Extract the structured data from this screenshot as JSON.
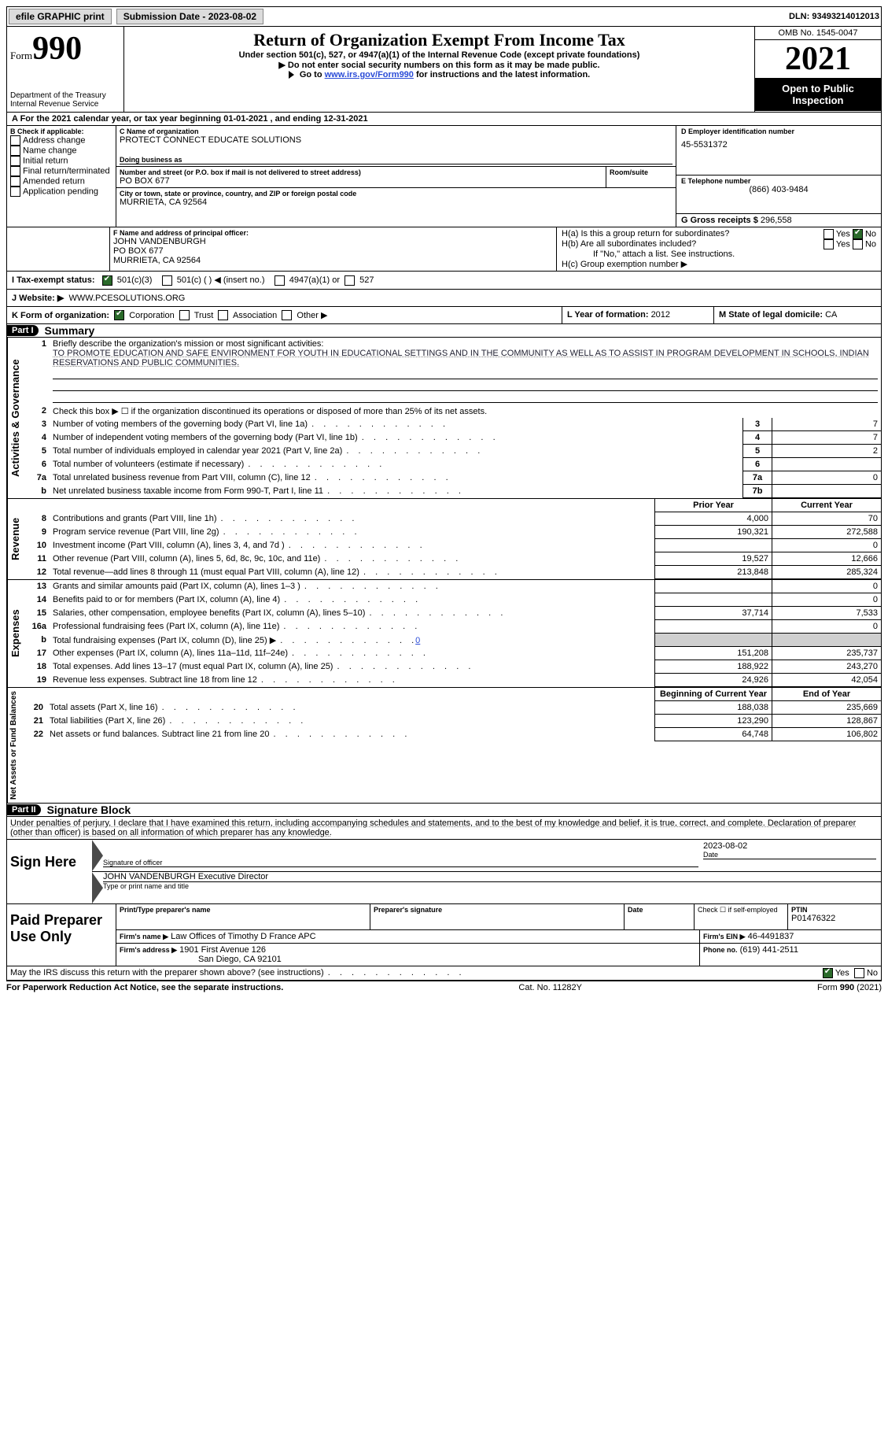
{
  "top": {
    "efile": "efile GRAPHIC print",
    "submission_label": "Submission Date - ",
    "submission_date": "2023-08-02",
    "dln_label": "DLN: ",
    "dln": "93493214012013"
  },
  "header": {
    "form_word": "Form",
    "form_num": "990",
    "dept": "Department of the Treasury",
    "irs": "Internal Revenue Service",
    "title": "Return of Organization Exempt From Income Tax",
    "subtitle": "Under section 501(c), 527, or 4947(a)(1) of the Internal Revenue Code (except private foundations)",
    "ssn_note": "Do not enter social security numbers on this form as it may be made public.",
    "goto": "Go to ",
    "goto_link": "www.irs.gov/Form990",
    "goto_rest": " for instructions and the latest information.",
    "omb": "OMB No. 1545-0047",
    "year": "2021",
    "open": "Open to Public Inspection"
  },
  "A": {
    "text_a": "A For the 2021 calendar year, or tax year beginning ",
    "begin": "01-01-2021",
    "mid": " , and ending ",
    "end": "12-31-2021"
  },
  "B": {
    "label": "B Check if applicable:",
    "addr": "Address change",
    "name": "Name change",
    "init": "Initial return",
    "final": "Final return/terminated",
    "amend": "Amended return",
    "app": "Application pending"
  },
  "C": {
    "name_label": "C Name of organization",
    "name": "PROTECT CONNECT EDUCATE SOLUTIONS",
    "dba_label": "Doing business as",
    "street_label": "Number and street (or P.O. box if mail is not delivered to street address)",
    "room_label": "Room/suite",
    "street": "PO BOX 677",
    "city_label": "City or town, state or province, country, and ZIP or foreign postal code",
    "city": "MURRIETA, CA  92564"
  },
  "D": {
    "label": "D Employer identification number",
    "val": "45-5531372"
  },
  "E": {
    "label": "E Telephone number",
    "val": "(866) 403-9484"
  },
  "G": {
    "label": "G Gross receipts $",
    "val": "296,558"
  },
  "F": {
    "label": "F Name and address of principal officer:",
    "name": "JOHN VANDENBURGH",
    "street": "PO BOX 677",
    "city": "MURRIETA, CA  92564"
  },
  "H": {
    "a": "H(a)  Is this a group return for subordinates?",
    "b": "H(b)  Are all subordinates included?",
    "b_note": "If \"No,\" attach a list. See instructions.",
    "c": "H(c)  Group exemption number ▶",
    "yes": "Yes",
    "no": "No"
  },
  "I": {
    "label": "I   Tax-exempt status:",
    "c3": "501(c)(3)",
    "c": "501(c) (   ) ◀ (insert no.)",
    "a1": "4947(a)(1) or",
    "s527": "527"
  },
  "J": {
    "label": "J   Website: ▶",
    "val": "WWW.PCESOLUTIONS.ORG"
  },
  "K": {
    "label": "K Form of organization:",
    "corp": "Corporation",
    "trust": "Trust",
    "assoc": "Association",
    "other": "Other ▶"
  },
  "L": {
    "label": "L Year of formation: ",
    "val": "2012"
  },
  "M": {
    "label": "M State of legal domicile: ",
    "val": "CA"
  },
  "part1": {
    "title": "Part I",
    "name": "Summary",
    "l1": "Briefly describe the organization's mission or most significant activities:",
    "mission": "TO PROMOTE EDUCATION AND SAFE ENVIRONMENT FOR YOUTH IN EDUCATIONAL SETTINGS AND IN THE COMMUNITY AS WELL AS TO ASSIST IN PROGRAM DEVELOPMENT IN SCHOOLS, INDIAN RESERVATIONS AND PUBLIC COMMUNITIES.",
    "l2": "Check this box ▶ ☐ if the organization discontinued its operations or disposed of more than 25% of its net assets.",
    "lines": {
      "3": {
        "t": "Number of voting members of the governing body (Part VI, line 1a)",
        "v": "7"
      },
      "4": {
        "t": "Number of independent voting members of the governing body (Part VI, line 1b)",
        "v": "7"
      },
      "5": {
        "t": "Total number of individuals employed in calendar year 2021 (Part V, line 2a)",
        "v": "2"
      },
      "6": {
        "t": "Total number of volunteers (estimate if necessary)",
        "v": ""
      },
      "7a": {
        "t": "Total unrelated business revenue from Part VIII, column (C), line 12",
        "v": "0"
      },
      "7b": {
        "t": "Net unrelated business taxable income from Form 990-T, Part I, line 11",
        "v": ""
      }
    },
    "col_prior": "Prior Year",
    "col_curr": "Current Year",
    "rev": [
      {
        "n": "8",
        "t": "Contributions and grants (Part VIII, line 1h)",
        "p": "4,000",
        "c": "70"
      },
      {
        "n": "9",
        "t": "Program service revenue (Part VIII, line 2g)",
        "p": "190,321",
        "c": "272,588"
      },
      {
        "n": "10",
        "t": "Investment income (Part VIII, column (A), lines 3, 4, and 7d )",
        "p": "",
        "c": "0"
      },
      {
        "n": "11",
        "t": "Other revenue (Part VIII, column (A), lines 5, 6d, 8c, 9c, 10c, and 11e)",
        "p": "19,527",
        "c": "12,666"
      },
      {
        "n": "12",
        "t": "Total revenue—add lines 8 through 11 (must equal Part VIII, column (A), line 12)",
        "p": "213,848",
        "c": "285,324"
      }
    ],
    "exp": [
      {
        "n": "13",
        "t": "Grants and similar amounts paid (Part IX, column (A), lines 1–3 )",
        "p": "",
        "c": "0"
      },
      {
        "n": "14",
        "t": "Benefits paid to or for members (Part IX, column (A), line 4)",
        "p": "",
        "c": "0"
      },
      {
        "n": "15",
        "t": "Salaries, other compensation, employee benefits (Part IX, column (A), lines 5–10)",
        "p": "37,714",
        "c": "7,533"
      },
      {
        "n": "16a",
        "t": "Professional fundraising fees (Part IX, column (A), line 11e)",
        "p": "",
        "c": "0"
      },
      {
        "n": "b",
        "t": "Total fundraising expenses (Part IX, column (D), line 25) ▶",
        "p": "grey",
        "c": "grey",
        "link": "0"
      },
      {
        "n": "17",
        "t": "Other expenses (Part IX, column (A), lines 11a–11d, 11f–24e)",
        "p": "151,208",
        "c": "235,737"
      },
      {
        "n": "18",
        "t": "Total expenses. Add lines 13–17 (must equal Part IX, column (A), line 25)",
        "p": "188,922",
        "c": "243,270"
      },
      {
        "n": "19",
        "t": "Revenue less expenses. Subtract line 18 from line 12",
        "p": "24,926",
        "c": "42,054"
      }
    ],
    "col_boy": "Beginning of Current Year",
    "col_eoy": "End of Year",
    "net": [
      {
        "n": "20",
        "t": "Total assets (Part X, line 16)",
        "p": "188,038",
        "c": "235,669"
      },
      {
        "n": "21",
        "t": "Total liabilities (Part X, line 26)",
        "p": "123,290",
        "c": "128,867"
      },
      {
        "n": "22",
        "t": "Net assets or fund balances. Subtract line 21 from line 20",
        "p": "64,748",
        "c": "106,802"
      }
    ],
    "sides": {
      "gov": "Activities & Governance",
      "rev": "Revenue",
      "exp": "Expenses",
      "net": "Net Assets or Fund Balances"
    }
  },
  "part2": {
    "title": "Part II",
    "name": "Signature Block",
    "decl": "Under penalties of perjury, I declare that I have examined this return, including accompanying schedules and statements, and to the best of my knowledge and belief, it is true, correct, and complete. Declaration of preparer (other than officer) is based on all information of which preparer has any knowledge.",
    "sign_here": "Sign Here",
    "sig_officer": "Signature of officer",
    "sig_date": "2023-08-02",
    "date_lbl": "Date",
    "officer_name": "JOHN VANDENBURGH  Executive Director",
    "type_name": "Type or print name and title",
    "paid": "Paid Preparer Use Only",
    "prep_name_lbl": "Print/Type preparer's name",
    "prep_sig_lbl": "Preparer's signature",
    "check_self": "Check ☐ if self-employed",
    "ptin_lbl": "PTIN",
    "ptin": "P01476322",
    "firm_name_lbl": "Firm's name   ▶",
    "firm_name": "Law Offices of Timothy D France APC",
    "firm_ein_lbl": "Firm's EIN ▶",
    "firm_ein": "46-4491837",
    "firm_addr_lbl": "Firm's address ▶",
    "firm_addr1": "1901 First Avenue 126",
    "firm_addr2": "San Diego, CA  92101",
    "phone_lbl": "Phone no.",
    "phone": "(619) 441-2511",
    "may_discuss": "May the IRS discuss this return with the preparer shown above? (see instructions)"
  },
  "footer": {
    "left": "For Paperwork Reduction Act Notice, see the separate instructions.",
    "mid": "Cat. No. 11282Y",
    "right": "Form 990 (2021)"
  }
}
